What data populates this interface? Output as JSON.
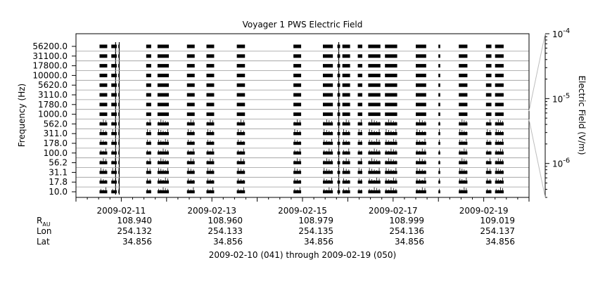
{
  "chart_data": {
    "type": "spectrogram-strip",
    "title": "Voyager 1 PWS Electric Field",
    "ylabel": "Frequency (Hz)",
    "colorbar_label": "Electric Field (V/m)",
    "frequency_channels": [
      "56200.0",
      "31100.0",
      "17800.0",
      "10000.0",
      "5620.0",
      "3110.0",
      "1780.0",
      "1000.0",
      "562.0",
      "311.0",
      "178.0",
      "100.0",
      "56.2",
      "31.1",
      "17.8",
      "10.0"
    ],
    "colorbar_scale": "log",
    "colorbar_range": [
      3e-07,
      0.0001
    ],
    "colorbar_ticks": [
      {
        "value": 0.0001,
        "base": "10",
        "exp": "-4"
      },
      {
        "value": 1e-05,
        "base": "10",
        "exp": "-5"
      },
      {
        "value": 1e-06,
        "base": "10",
        "exp": "-6"
      }
    ],
    "x_range": [
      "2009-02-10",
      "2009-02-20"
    ],
    "x_tick_dates": [
      "2009-02-11",
      "2009-02-13",
      "2009-02-15",
      "2009-02-17",
      "2009-02-19"
    ],
    "data_intervals_days": [
      [
        0.52,
        0.69
      ],
      [
        0.78,
        0.9
      ],
      [
        0.935,
        0.96
      ],
      [
        1.55,
        1.66
      ],
      [
        1.8,
        2.05
      ],
      [
        2.45,
        2.62
      ],
      [
        2.88,
        3.05
      ],
      [
        3.55,
        3.73
      ],
      [
        4.8,
        4.97
      ],
      [
        5.45,
        5.67
      ],
      [
        5.77,
        5.83
      ],
      [
        5.88,
        6.05
      ],
      [
        6.22,
        6.32
      ],
      [
        6.45,
        6.72
      ],
      [
        6.82,
        7.09
      ],
      [
        7.5,
        7.73
      ],
      [
        8.0,
        8.04
      ],
      [
        8.45,
        8.64
      ],
      [
        9.05,
        9.17
      ],
      [
        9.25,
        9.44
      ]
    ],
    "spike_days": [
      0.875,
      0.955,
      5.8
    ],
    "footer": {
      "rows": [
        {
          "label": "R",
          "sub": "AU",
          "values": [
            "108.940",
            "108.960",
            "108.979",
            "108.999",
            "109.019"
          ]
        },
        {
          "label": "Lon",
          "sub": "",
          "values": [
            "254.132",
            "254.133",
            "254.135",
            "254.136",
            "254.137"
          ]
        },
        {
          "label": "Lat",
          "sub": "",
          "values": [
            "34.856",
            "34.856",
            "34.856",
            "34.856",
            "34.856"
          ]
        }
      ],
      "range_text": "2009-02-10 (041) through 2009-02-19 (050)"
    }
  }
}
